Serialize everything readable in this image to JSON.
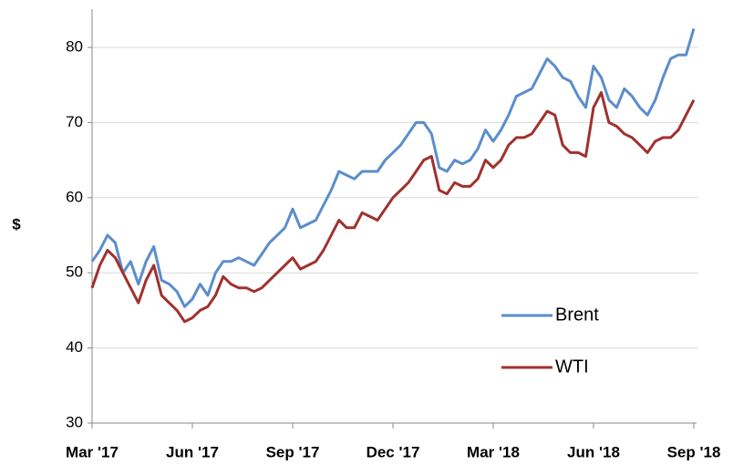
{
  "chart_data": {
    "type": "line",
    "ylabel": "$",
    "categories": [
      "Mar '17",
      null,
      null,
      null,
      null,
      null,
      null,
      null,
      null,
      null,
      null,
      null,
      null,
      "Jun '17",
      null,
      null,
      null,
      null,
      null,
      null,
      null,
      null,
      null,
      null,
      null,
      null,
      "Sep '17",
      null,
      null,
      null,
      null,
      null,
      null,
      null,
      null,
      null,
      null,
      null,
      null,
      "Dec '17",
      null,
      null,
      null,
      null,
      null,
      null,
      null,
      null,
      null,
      null,
      null,
      null,
      "Mar '18",
      null,
      null,
      null,
      null,
      null,
      null,
      null,
      null,
      null,
      null,
      null,
      null,
      "Jun '18",
      null,
      null,
      null,
      null,
      null,
      null,
      null,
      null,
      null,
      null,
      null,
      null,
      "Sep '18"
    ],
    "series": [
      {
        "name": "Brent",
        "color": "#5b8dcb",
        "values": [
          51.5,
          53,
          55,
          54,
          50,
          51.5,
          48.5,
          51.5,
          53.5,
          49,
          48.5,
          47.5,
          45.5,
          46.5,
          48.5,
          47,
          50,
          51.5,
          51.5,
          52,
          51.5,
          51,
          52.5,
          54,
          55,
          56,
          58.5,
          56,
          56.5,
          57,
          59,
          61,
          63.5,
          63,
          62.5,
          63.5,
          63.5,
          63.5,
          65,
          66,
          67,
          68.5,
          70,
          70,
          68.5,
          64,
          63.5,
          65,
          64.5,
          65,
          66.5,
          69,
          67.5,
          69,
          71,
          73.5,
          74,
          74.5,
          76.5,
          78.5,
          77.5,
          76,
          75.5,
          73.5,
          72,
          77.5,
          76,
          73,
          72,
          74.5,
          73.5,
          72,
          71,
          73,
          76,
          78.5,
          79,
          79,
          82.5
        ]
      },
      {
        "name": "WTI",
        "color": "#a0312e",
        "values": [
          48,
          51,
          53,
          52,
          50,
          48,
          46,
          49,
          51,
          47,
          46,
          45,
          43.5,
          44,
          45,
          45.5,
          47,
          49.5,
          48.5,
          48,
          48,
          47.5,
          48,
          49,
          50,
          51,
          52,
          50.5,
          51,
          51.5,
          53,
          55,
          57,
          56,
          56,
          58,
          57.5,
          57,
          58.5,
          60,
          61,
          62,
          63.5,
          65,
          65.5,
          61,
          60.5,
          62,
          61.5,
          61.5,
          62.5,
          65,
          64,
          65,
          67,
          68,
          68,
          68.5,
          70,
          71.5,
          71,
          67,
          66,
          66,
          65.5,
          72,
          74,
          70,
          69.5,
          68.5,
          68,
          67,
          66,
          67.5,
          68,
          68,
          69,
          71,
          73
        ]
      }
    ],
    "ylim": [
      30,
      85
    ],
    "yticks": [
      30,
      40,
      50,
      60,
      70,
      80
    ],
    "grid": true,
    "legend": "right"
  }
}
